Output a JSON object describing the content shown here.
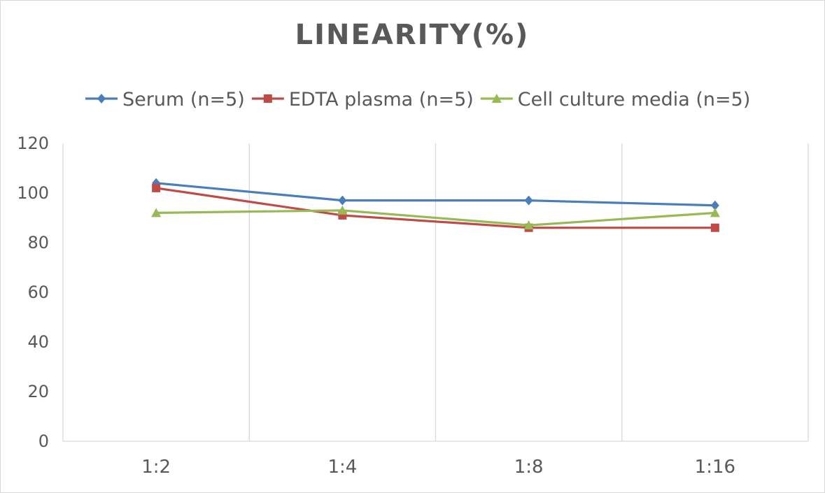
{
  "chart_data": {
    "type": "line",
    "title": "LINEARITY(%)",
    "xlabel": "",
    "ylabel": "",
    "categories": [
      "1:2",
      "1:4",
      "1:8",
      "1:16"
    ],
    "ylim": [
      0,
      120
    ],
    "yticks": [
      0,
      20,
      40,
      60,
      80,
      100,
      120
    ],
    "grid": "vertical",
    "legend_position": "top",
    "series": [
      {
        "name": "Serum (n=5)",
        "values": [
          104,
          97,
          97,
          95
        ],
        "color": "#4a7ebb",
        "marker": "diamond"
      },
      {
        "name": "EDTA plasma (n=5)",
        "values": [
          102,
          91,
          86,
          86
        ],
        "color": "#be4b48",
        "marker": "square"
      },
      {
        "name": "Cell culture media (n=5)",
        "values": [
          92,
          93,
          87,
          92
        ],
        "color": "#98b954",
        "marker": "triangle"
      }
    ]
  }
}
